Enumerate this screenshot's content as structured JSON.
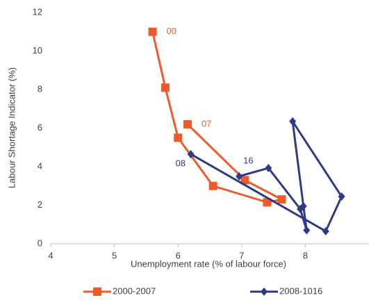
{
  "chart_data": {
    "type": "line",
    "xlabel": "Unemployment rate (% of labour force)",
    "ylabel": "Labour Shortage Indicator (%)",
    "xlim": [
      4,
      9
    ],
    "xticks": [
      4,
      5,
      6,
      7,
      8
    ],
    "ylim": [
      0,
      12
    ],
    "yticks": [
      0,
      2,
      4,
      6,
      8,
      10,
      12
    ],
    "grid": false,
    "legend": "bottom",
    "series": [
      {
        "name": "2000-2007",
        "color": "#ec5b2a",
        "marker": "square",
        "x": [
          5.6,
          5.8,
          6.0,
          6.55,
          7.4,
          7.63,
          7.05,
          6.15
        ],
        "values": [
          11.0,
          8.1,
          5.5,
          3.0,
          2.15,
          2.3,
          3.3,
          6.2
        ],
        "annotations": [
          "00",
          "07"
        ]
      },
      {
        "name": "2008-1016",
        "color": "#2e3a87",
        "marker": "diamond",
        "x": [
          6.2,
          8.32,
          8.57,
          7.8,
          7.97,
          8.02,
          7.92,
          7.42,
          6.96
        ],
        "values": [
          4.65,
          0.65,
          2.45,
          6.35,
          1.95,
          0.7,
          1.8,
          3.93,
          3.5
        ],
        "annotations": [
          "08",
          "16"
        ]
      }
    ]
  }
}
